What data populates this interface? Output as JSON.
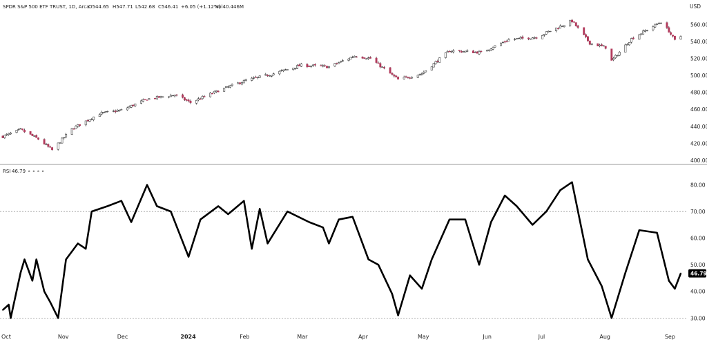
{
  "header": {
    "symbol_line": "SPDR S&P 500 ETF TRUST, 1D, Arca",
    "ohlc": [
      "O544.65",
      "H547.71",
      "L542.68",
      "C546.41",
      "+6.05 (+1.12%)"
    ],
    "volume": "Vol40.446M",
    "currency": "USD"
  },
  "rsi_header": {
    "label": "RSI",
    "value": "46.79",
    "glyphs": "∘ ∘ ∘ ∘"
  },
  "colors": {
    "up": "#1f7a3a",
    "down": "#b23a5c",
    "line": "#000000",
    "axis_text": "#222222",
    "divider": "#999999",
    "badge": "#000000"
  },
  "chart_data": [
    {
      "type": "candlestick",
      "title": "SPDR S&P 500 ETF TRUST, 1D, Arca",
      "ylabel": "USD",
      "ylim": [
        400,
        570
      ],
      "yticks": [
        "560.00",
        "540.00",
        "520.00",
        "500.00",
        "480.00",
        "460.00",
        "440.00",
        "420.00",
        "400.00"
      ],
      "x_categories": [
        "Oct",
        "Nov",
        "Dec",
        "2024",
        "Feb",
        "Mar",
        "Apr",
        "May",
        "Jun",
        "Jul",
        "Aug",
        "Sep"
      ],
      "grid": false,
      "close_anchors": [
        [
          "2023-10-02",
          428
        ],
        [
          "2023-10-11",
          436
        ],
        [
          "2023-10-20",
          425
        ],
        [
          "2023-10-27",
          412
        ],
        [
          "2023-11-06",
          437
        ],
        [
          "2023-11-20",
          455
        ],
        [
          "2023-12-01",
          459
        ],
        [
          "2023-12-14",
          472
        ],
        [
          "2023-12-28",
          477
        ],
        [
          "2024-01-05",
          468
        ],
        [
          "2024-01-19",
          482
        ],
        [
          "2024-02-02",
          494
        ],
        [
          "2024-02-16",
          502
        ],
        [
          "2024-03-01",
          512
        ],
        [
          "2024-03-15",
          510
        ],
        [
          "2024-03-28",
          523
        ],
        [
          "2024-04-05",
          520
        ],
        [
          "2024-04-19",
          495
        ],
        [
          "2024-05-01",
          502
        ],
        [
          "2024-05-15",
          529
        ],
        [
          "2024-05-31",
          527
        ],
        [
          "2024-06-14",
          542
        ],
        [
          "2024-06-28",
          545
        ],
        [
          "2024-07-16",
          564
        ],
        [
          "2024-07-25",
          538
        ],
        [
          "2024-08-02",
          533
        ],
        [
          "2024-08-05",
          517
        ],
        [
          "2024-08-15",
          543
        ],
        [
          "2024-08-30",
          563
        ],
        [
          "2024-09-03",
          552
        ],
        [
          "2024-09-06",
          541
        ],
        [
          "2024-09-09",
          546
        ]
      ]
    },
    {
      "type": "line",
      "title": "RSI",
      "series": [
        {
          "name": "RSI",
          "points": [
            [
              "2023-10-02",
              33
            ],
            [
              "2023-10-05",
              35
            ],
            [
              "2023-10-06",
              30
            ],
            [
              "2023-10-11",
              47
            ],
            [
              "2023-10-13",
              52
            ],
            [
              "2023-10-17",
              44
            ],
            [
              "2023-10-19",
              52
            ],
            [
              "2023-10-23",
              40
            ],
            [
              "2023-10-26",
              36
            ],
            [
              "2023-10-30",
              30
            ],
            [
              "2023-11-03",
              52
            ],
            [
              "2023-11-09",
              58
            ],
            [
              "2023-11-13",
              56
            ],
            [
              "2023-11-16",
              70
            ],
            [
              "2023-11-24",
              72
            ],
            [
              "2023-12-01",
              74
            ],
            [
              "2023-12-06",
              66
            ],
            [
              "2023-12-14",
              80
            ],
            [
              "2023-12-19",
              72
            ],
            [
              "2023-12-26",
              70
            ],
            [
              "2024-01-04",
              53
            ],
            [
              "2024-01-10",
              67
            ],
            [
              "2024-01-19",
              72
            ],
            [
              "2024-01-24",
              69
            ],
            [
              "2024-02-01",
              74
            ],
            [
              "2024-02-05",
              56
            ],
            [
              "2024-02-09",
              71
            ],
            [
              "2024-02-13",
              58
            ],
            [
              "2024-02-23",
              70
            ],
            [
              "2024-03-05",
              66
            ],
            [
              "2024-03-12",
              64
            ],
            [
              "2024-03-15",
              58
            ],
            [
              "2024-03-20",
              67
            ],
            [
              "2024-03-27",
              68
            ],
            [
              "2024-04-04",
              52
            ],
            [
              "2024-04-09",
              50
            ],
            [
              "2024-04-16",
              39
            ],
            [
              "2024-04-19",
              31
            ],
            [
              "2024-04-25",
              46
            ],
            [
              "2024-05-01",
              41
            ],
            [
              "2024-05-06",
              52
            ],
            [
              "2024-05-15",
              67
            ],
            [
              "2024-05-23",
              67
            ],
            [
              "2024-05-30",
              50
            ],
            [
              "2024-06-05",
              66
            ],
            [
              "2024-06-12",
              76
            ],
            [
              "2024-06-18",
              72
            ],
            [
              "2024-06-26",
              65
            ],
            [
              "2024-07-03",
              70
            ],
            [
              "2024-07-10",
              78
            ],
            [
              "2024-07-16",
              81
            ],
            [
              "2024-07-24",
              52
            ],
            [
              "2024-07-31",
              42
            ],
            [
              "2024-08-05",
              30
            ],
            [
              "2024-08-12",
              47
            ],
            [
              "2024-08-19",
              63
            ],
            [
              "2024-08-28",
              62
            ],
            [
              "2024-09-03",
              44
            ],
            [
              "2024-09-06",
              41
            ],
            [
              "2024-09-09",
              46.79
            ]
          ]
        }
      ],
      "ylim": [
        28,
        83
      ],
      "yticks": [
        "80.00",
        "70.00",
        "60.00",
        "50.00",
        "40.00",
        "30.00"
      ],
      "reference_levels": [
        70,
        30
      ],
      "last_value_label": "46.79",
      "x_categories": [
        "Oct",
        "Nov",
        "Dec",
        "2024",
        "Feb",
        "Mar",
        "Apr",
        "May",
        "Jun",
        "Jul",
        "Aug",
        "Sep"
      ]
    }
  ]
}
